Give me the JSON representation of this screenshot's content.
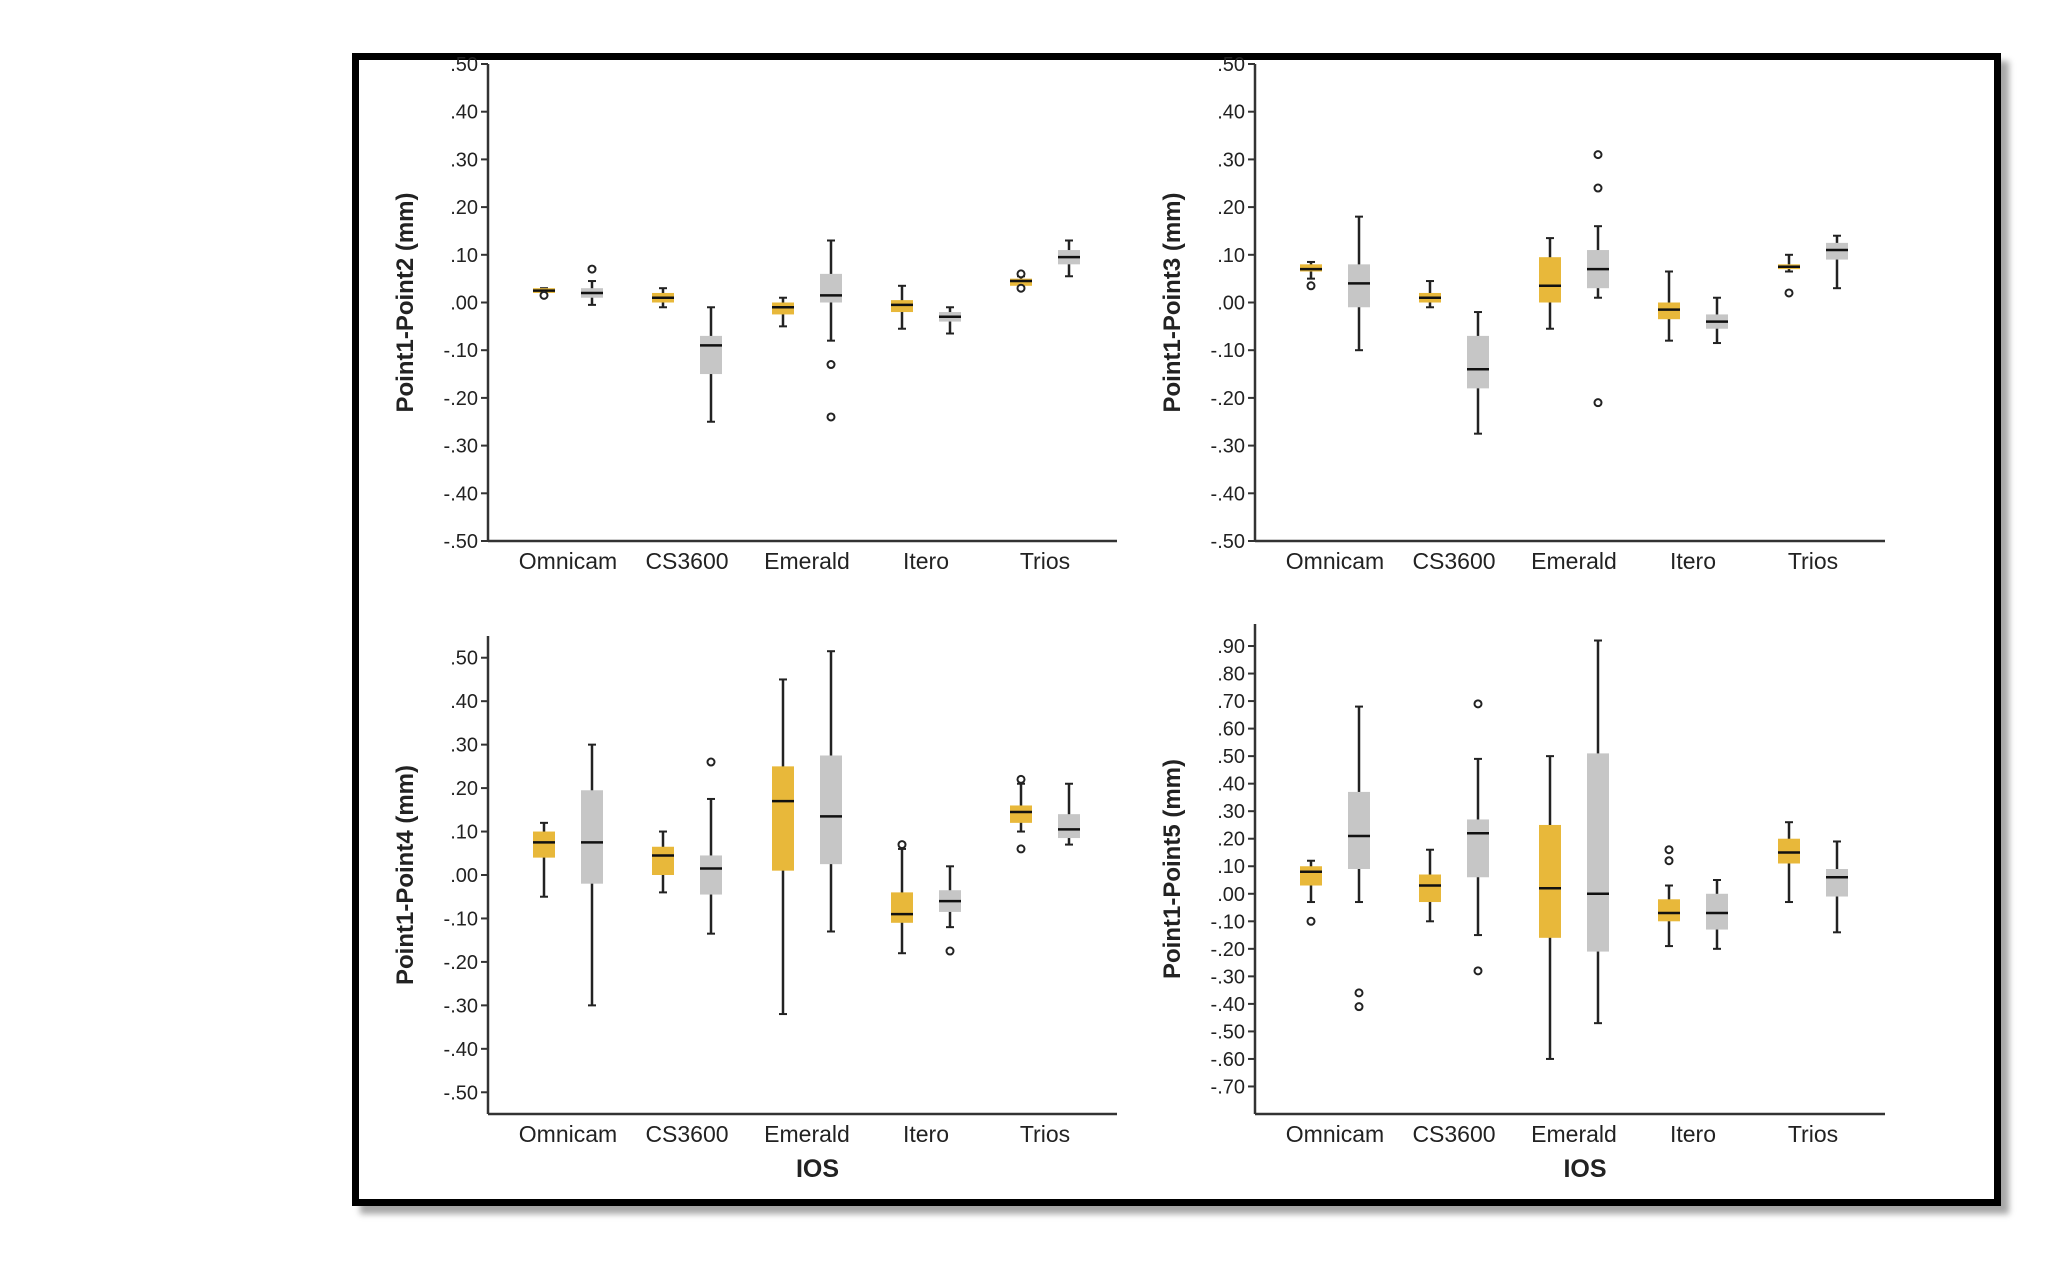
{
  "colors": {
    "group1": "#e8b83a",
    "group2": "#c6c6c6",
    "axis": "#333333",
    "whisker": "#222222"
  },
  "chart_data": [
    {
      "type": "box",
      "ylabel": "Point1-Point2 (mm)",
      "xlabel": "",
      "ylim": [
        -0.5,
        0.5
      ],
      "yticks": [
        0.5,
        0.4,
        0.3,
        0.2,
        0.1,
        0.0,
        -0.1,
        -0.2,
        -0.3,
        -0.4,
        -0.5
      ],
      "ytick_labels": [
        ".50",
        ".40",
        ".30",
        ".20",
        ".10",
        ".00",
        "-.10",
        "-.20",
        "-.30",
        "-.40",
        "-.50"
      ],
      "categories": [
        "Omnicam",
        "CS3600",
        "Emerald",
        "Itero",
        "Trios"
      ],
      "series": [
        {
          "boxes": [
            {
              "min": 0.015,
              "q1": 0.02,
              "median": 0.025,
              "q3": 0.03,
              "max": 0.03,
              "outliers": [
                0.015
              ]
            },
            {
              "min": -0.01,
              "q1": 0.0,
              "median": 0.01,
              "q3": 0.02,
              "max": 0.03,
              "outliers": []
            },
            {
              "min": -0.05,
              "q1": -0.025,
              "median": -0.01,
              "q3": 0.0,
              "max": 0.01,
              "outliers": []
            },
            {
              "min": -0.055,
              "q1": -0.02,
              "median": -0.005,
              "q3": 0.005,
              "max": 0.035,
              "outliers": []
            },
            {
              "min": 0.03,
              "q1": 0.035,
              "median": 0.045,
              "q3": 0.05,
              "max": 0.055,
              "outliers": [
                0.03,
                0.06
              ]
            }
          ]
        },
        {
          "boxes": [
            {
              "min": -0.005,
              "q1": 0.01,
              "median": 0.02,
              "q3": 0.03,
              "max": 0.045,
              "outliers": [
                0.07
              ]
            },
            {
              "min": -0.25,
              "q1": -0.15,
              "median": -0.09,
              "q3": -0.07,
              "max": -0.01,
              "outliers": []
            },
            {
              "min": -0.08,
              "q1": 0.0,
              "median": 0.015,
              "q3": 0.06,
              "max": 0.13,
              "outliers": [
                -0.13,
                -0.24
              ]
            },
            {
              "min": -0.065,
              "q1": -0.04,
              "median": -0.03,
              "q3": -0.02,
              "max": -0.01,
              "outliers": []
            },
            {
              "min": 0.055,
              "q1": 0.08,
              "median": 0.095,
              "q3": 0.11,
              "max": 0.13,
              "outliers": []
            }
          ]
        }
      ]
    },
    {
      "type": "box",
      "ylabel": "Point1-Point3 (mm)",
      "xlabel": "",
      "ylim": [
        -0.5,
        0.5
      ],
      "yticks": [
        0.5,
        0.4,
        0.3,
        0.2,
        0.1,
        0.0,
        -0.1,
        -0.2,
        -0.3,
        -0.4,
        -0.5
      ],
      "ytick_labels": [
        ".50",
        ".40",
        ".30",
        ".20",
        ".10",
        ".00",
        "-.10",
        "-.20",
        "-.30",
        "-.40",
        "-.50"
      ],
      "categories": [
        "Omnicam",
        "CS3600",
        "Emerald",
        "Itero",
        "Trios"
      ],
      "series": [
        {
          "boxes": [
            {
              "min": 0.05,
              "q1": 0.065,
              "median": 0.07,
              "q3": 0.08,
              "max": 0.085,
              "outliers": [
                0.035
              ]
            },
            {
              "min": -0.01,
              "q1": 0.0,
              "median": 0.01,
              "q3": 0.02,
              "max": 0.045,
              "outliers": []
            },
            {
              "min": -0.055,
              "q1": 0.0,
              "median": 0.035,
              "q3": 0.095,
              "max": 0.135,
              "outliers": []
            },
            {
              "min": -0.08,
              "q1": -0.035,
              "median": -0.015,
              "q3": 0.0,
              "max": 0.065,
              "outliers": []
            },
            {
              "min": 0.065,
              "q1": 0.07,
              "median": 0.075,
              "q3": 0.08,
              "max": 0.1,
              "outliers": [
                0.02
              ]
            }
          ]
        },
        {
          "boxes": [
            {
              "min": -0.1,
              "q1": -0.01,
              "median": 0.04,
              "q3": 0.08,
              "max": 0.18,
              "outliers": []
            },
            {
              "min": -0.275,
              "q1": -0.18,
              "median": -0.14,
              "q3": -0.07,
              "max": -0.02,
              "outliers": []
            },
            {
              "min": 0.01,
              "q1": 0.03,
              "median": 0.07,
              "q3": 0.11,
              "max": 0.16,
              "outliers": [
                0.31,
                0.24,
                -0.21
              ]
            },
            {
              "min": -0.085,
              "q1": -0.055,
              "median": -0.04,
              "q3": -0.025,
              "max": 0.01,
              "outliers": []
            },
            {
              "min": 0.03,
              "q1": 0.09,
              "median": 0.11,
              "q3": 0.125,
              "max": 0.14,
              "outliers": []
            }
          ]
        }
      ]
    },
    {
      "type": "box",
      "ylabel": "Point1-Point4 (mm)",
      "xlabel": "IOS",
      "ylim": [
        -0.55,
        0.55
      ],
      "yticks": [
        0.5,
        0.4,
        0.3,
        0.2,
        0.1,
        0.0,
        -0.1,
        -0.2,
        -0.3,
        -0.4,
        -0.5
      ],
      "ytick_labels": [
        ".50",
        ".40",
        ".30",
        ".20",
        ".10",
        ".00",
        "-.10",
        "-.20",
        "-.30",
        "-.40",
        "-.50"
      ],
      "categories": [
        "Omnicam",
        "CS3600",
        "Emerald",
        "Itero",
        "Trios"
      ],
      "series": [
        {
          "boxes": [
            {
              "min": -0.05,
              "q1": 0.04,
              "median": 0.075,
              "q3": 0.1,
              "max": 0.12,
              "outliers": []
            },
            {
              "min": -0.04,
              "q1": 0.0,
              "median": 0.045,
              "q3": 0.065,
              "max": 0.1,
              "outliers": []
            },
            {
              "min": -0.32,
              "q1": 0.01,
              "median": 0.17,
              "q3": 0.25,
              "max": 0.45,
              "outliers": []
            },
            {
              "min": -0.18,
              "q1": -0.11,
              "median": -0.09,
              "q3": -0.04,
              "max": 0.06,
              "outliers": [
                0.07
              ]
            },
            {
              "min": 0.1,
              "q1": 0.12,
              "median": 0.145,
              "q3": 0.16,
              "max": 0.21,
              "outliers": [
                0.22,
                0.06
              ]
            }
          ]
        },
        {
          "boxes": [
            {
              "min": -0.3,
              "q1": -0.02,
              "median": 0.075,
              "q3": 0.195,
              "max": 0.3,
              "outliers": []
            },
            {
              "min": -0.135,
              "q1": -0.045,
              "median": 0.015,
              "q3": 0.045,
              "max": 0.175,
              "outliers": [
                0.26
              ]
            },
            {
              "min": -0.13,
              "q1": 0.025,
              "median": 0.135,
              "q3": 0.275,
              "max": 0.515,
              "outliers": []
            },
            {
              "min": -0.12,
              "q1": -0.085,
              "median": -0.06,
              "q3": -0.035,
              "max": 0.02,
              "outliers": [
                -0.175
              ]
            },
            {
              "min": 0.07,
              "q1": 0.085,
              "median": 0.105,
              "q3": 0.14,
              "max": 0.21,
              "outliers": []
            }
          ]
        }
      ]
    },
    {
      "type": "box",
      "ylabel": "Point1-Point5 (mm)",
      "xlabel": "IOS",
      "ylim": [
        -0.8,
        0.98
      ],
      "yticks": [
        0.9,
        0.8,
        0.7,
        0.6,
        0.5,
        0.4,
        0.3,
        0.2,
        0.1,
        0.0,
        -0.1,
        -0.2,
        -0.3,
        -0.4,
        -0.5,
        -0.6,
        -0.7
      ],
      "ytick_labels": [
        ".90",
        ".80",
        ".70",
        ".60",
        ".50",
        ".40",
        ".30",
        ".20",
        ".10",
        ".00",
        "-.10",
        "-.20",
        "-.30",
        "-.40",
        "-.50",
        "-.60",
        "-.70"
      ],
      "categories": [
        "Omnicam",
        "CS3600",
        "Emerald",
        "Itero",
        "Trios"
      ],
      "series": [
        {
          "boxes": [
            {
              "min": -0.03,
              "q1": 0.03,
              "median": 0.08,
              "q3": 0.1,
              "max": 0.12,
              "outliers": [
                -0.1
              ]
            },
            {
              "min": -0.1,
              "q1": -0.03,
              "median": 0.03,
              "q3": 0.07,
              "max": 0.16,
              "outliers": []
            },
            {
              "min": -0.6,
              "q1": -0.16,
              "median": 0.02,
              "q3": 0.25,
              "max": 0.5,
              "outliers": []
            },
            {
              "min": -0.19,
              "q1": -0.1,
              "median": -0.07,
              "q3": -0.02,
              "max": 0.03,
              "outliers": [
                0.16,
                0.12
              ]
            },
            {
              "min": -0.03,
              "q1": 0.11,
              "median": 0.15,
              "q3": 0.2,
              "max": 0.26,
              "outliers": []
            }
          ]
        },
        {
          "boxes": [
            {
              "min": -0.03,
              "q1": 0.09,
              "median": 0.21,
              "q3": 0.37,
              "max": 0.68,
              "outliers": [
                -0.36,
                -0.41
              ]
            },
            {
              "min": -0.15,
              "q1": 0.06,
              "median": 0.22,
              "q3": 0.27,
              "max": 0.49,
              "outliers": [
                0.69,
                -0.28
              ]
            },
            {
              "min": -0.47,
              "q1": -0.21,
              "median": 0.0,
              "q3": 0.51,
              "max": 0.92,
              "outliers": []
            },
            {
              "min": -0.2,
              "q1": -0.13,
              "median": -0.07,
              "q3": 0.0,
              "max": 0.05,
              "outliers": []
            },
            {
              "min": -0.14,
              "q1": -0.01,
              "median": 0.06,
              "q3": 0.09,
              "max": 0.19,
              "outliers": []
            }
          ]
        }
      ]
    }
  ]
}
